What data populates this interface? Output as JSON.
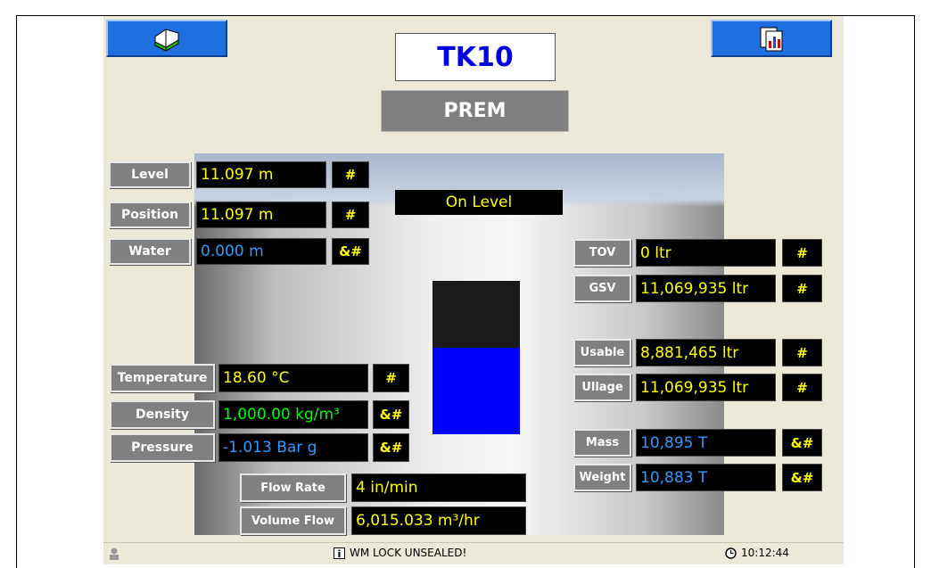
{
  "header": {
    "tank": "TK10",
    "product": "PREM"
  },
  "status_banner": "On Level",
  "left_readings": [
    {
      "label": "Level",
      "value": "11.097 m",
      "flag": "#"
    },
    {
      "label": "Position",
      "value": "11.097 m",
      "flag": "#"
    },
    {
      "label": "Water",
      "value": "0.000 m",
      "flag": "&#"
    }
  ],
  "right_readings": [
    {
      "label": "TOV",
      "value": "0 ltr",
      "flag": "#"
    },
    {
      "label": "GSV",
      "value": "11,069,935 ltr",
      "flag": "#"
    },
    {
      "label": "Usable",
      "value": "8,881,465 ltr",
      "flag": "#"
    },
    {
      "label": "Ullage",
      "value": "11,069,935 ltr",
      "flag": "#"
    },
    {
      "label": "Mass",
      "value": "10,895 T",
      "flag": "&#"
    },
    {
      "label": "Weight",
      "value": "10,883 T",
      "flag": "&#"
    }
  ],
  "process_readings": [
    {
      "label": "Temperature",
      "value": "18.60 °C",
      "flag": "#"
    },
    {
      "label": "Density",
      "value": "1,000.00 kg/m³",
      "flag": "&#"
    },
    {
      "label": "Pressure",
      "value": "-1.013 Bar g",
      "flag": "&#"
    }
  ],
  "flow_readings": [
    {
      "label": "Flow Rate",
      "value": "4 in/min"
    },
    {
      "label": "Volume Flow",
      "value": "6,015.033 m³/hr"
    }
  ],
  "status_bar": {
    "message": "WM LOCK UNSEALED!",
    "time": "10:12:44"
  }
}
